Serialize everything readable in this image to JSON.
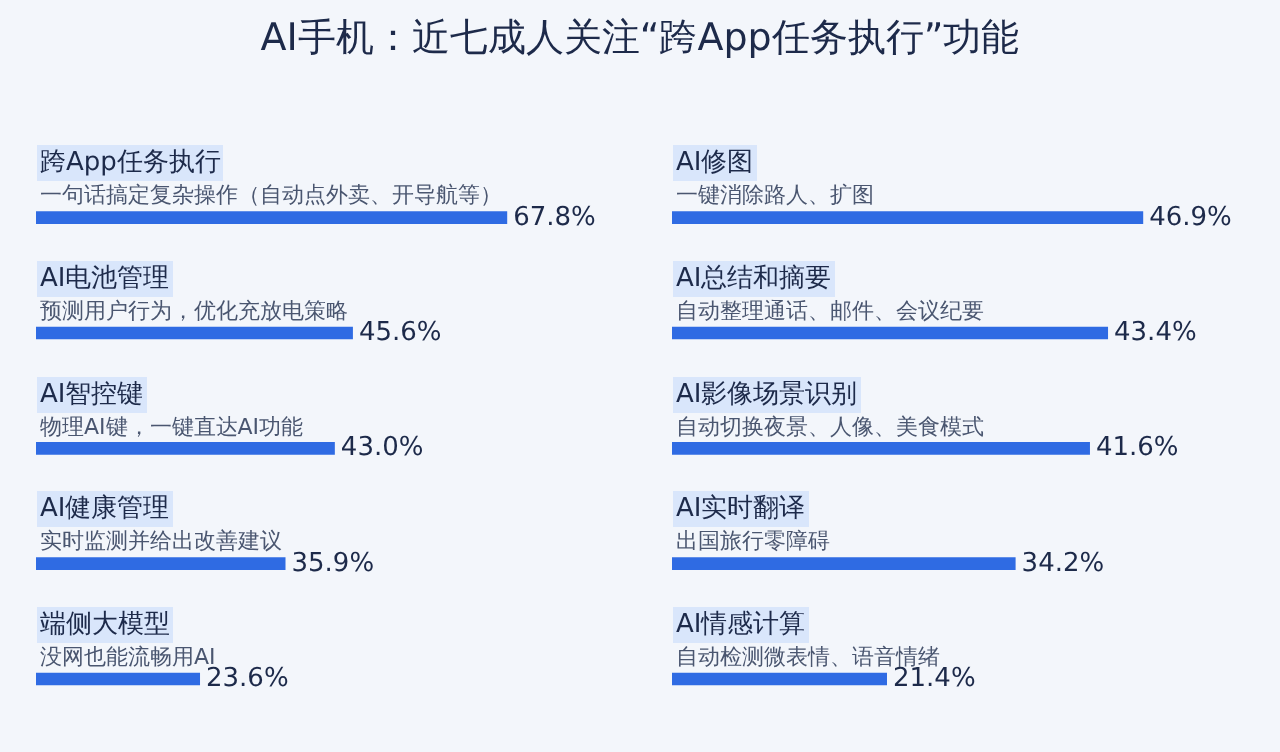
{
  "chart_data": [
    {
      "type": "bar",
      "orientation": "horizontal",
      "title": "AI手机：近七成人关注“跨App任务执行”功能",
      "tick_labels": false,
      "color": "#2f6be3",
      "categories": [
        "跨App任务执行",
        "AI电池管理",
        "AI智控键",
        "AI健康管理",
        "端侧大模型"
      ],
      "values": [
        67.8,
        45.6,
        43.0,
        35.9,
        23.6
      ],
      "value_labels": [
        "67.8%",
        "45.6%",
        "43.0%",
        "35.9%",
        "23.6%"
      ],
      "annotations": [
        "一句话搞定复杂操作（自动点外卖、开导航等）",
        "预测用户行为，优化充放电策略",
        "物理AI键，一键直达AI功能",
        "实时监测并给出改善建议",
        "没网也能流畅用AI"
      ]
    },
    {
      "type": "bar",
      "orientation": "horizontal",
      "tick_labels": false,
      "color": "#2f6be3",
      "categories": [
        "AI修图",
        "AI总结和摘要",
        "AI影像场景识别",
        "AI实时翻译",
        "AI情感计算"
      ],
      "values": [
        46.9,
        43.4,
        41.6,
        34.2,
        21.4
      ],
      "value_labels": [
        "46.9%",
        "43.4%",
        "41.6%",
        "34.2%",
        "21.4%"
      ],
      "annotations": [
        "一键消除路人、扩图",
        "自动整理通话、邮件、会议纪要",
        "自动切换夜景、人像、美食模式",
        "出国旅行零障碍",
        "自动检测微表情、语音情绪"
      ]
    }
  ]
}
